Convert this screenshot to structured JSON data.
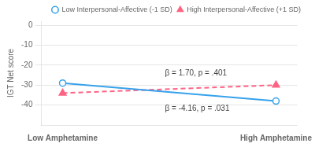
{
  "chart_data": {
    "type": "line",
    "ylabel": "IGT Net score",
    "x": [
      0,
      1
    ],
    "xlim": [
      -0.1,
      1.1
    ],
    "xticks": [
      {
        "value": 0,
        "label": "Low Amphetamine"
      },
      {
        "value": 1,
        "label": "High Amphetamine"
      }
    ],
    "ylim": [
      -50,
      2
    ],
    "yticks": [
      0,
      -10,
      -20,
      -30,
      -40
    ],
    "grid": true,
    "legend": "upper right",
    "series": [
      {
        "name": "Low Interpersonal-Affective (-1 SD)",
        "values": [
          -29.0,
          -38.0
        ],
        "marker": "circle",
        "line_style": "solid"
      },
      {
        "name": "High Interpersonal-Affective (+1 SD)",
        "values": [
          -34.0,
          -30.0
        ],
        "marker": "triangle",
        "line_style": "dashed"
      }
    ],
    "annotations": [
      {
        "text": "β = 1.70, p = .401",
        "x": 0.48,
        "y": -25.0
      },
      {
        "text": "β = -4.16, p = .031",
        "x": 0.48,
        "y": -43.0
      }
    ]
  }
}
